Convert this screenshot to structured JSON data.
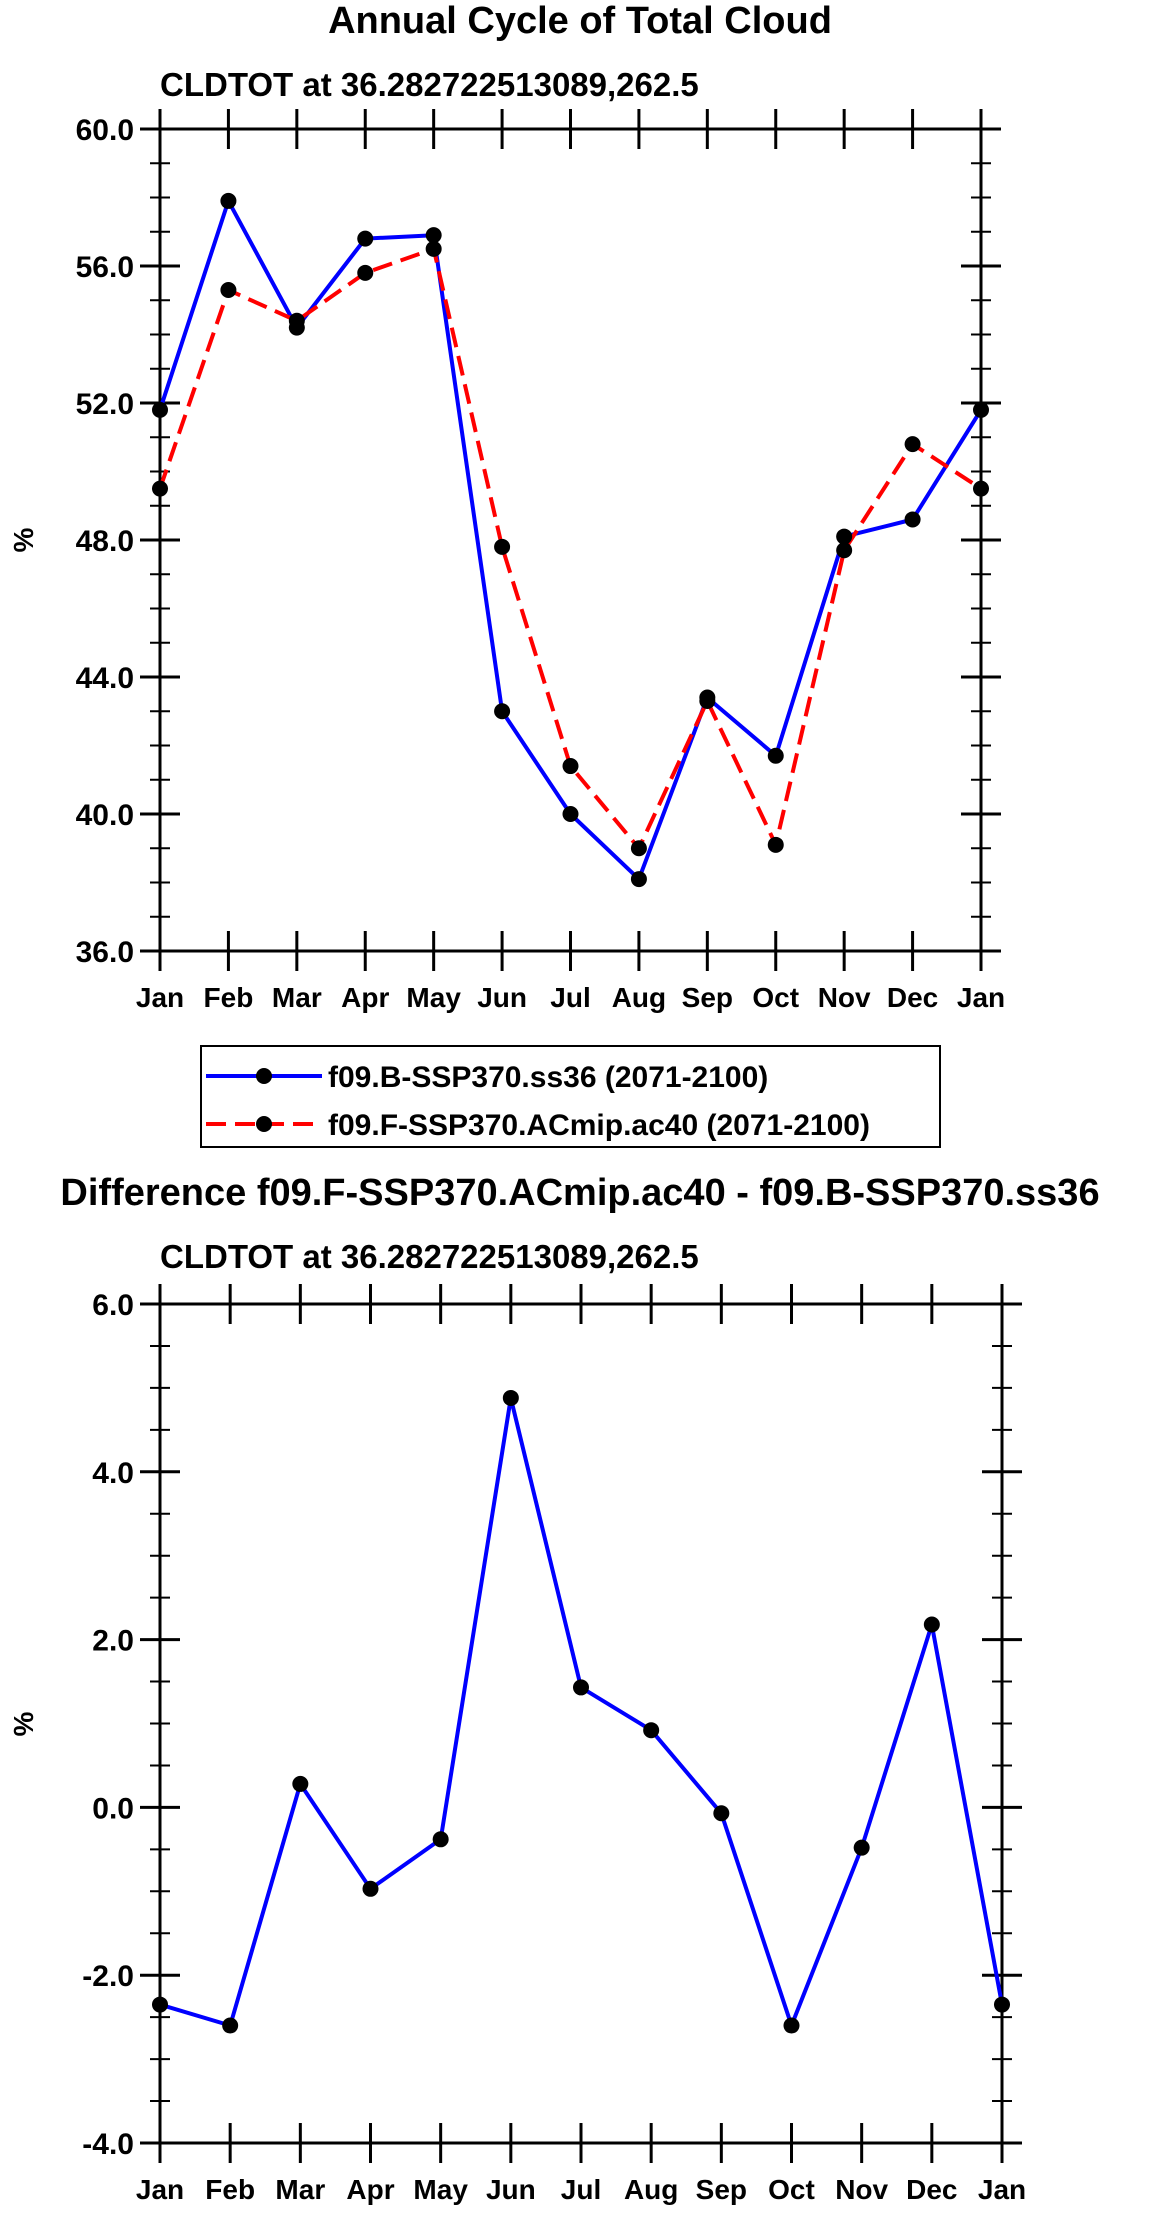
{
  "chart_data": [
    {
      "type": "line",
      "title": "Annual Cycle of Total Cloud",
      "subtitle": "CLDTOT at 36.282722513089,262.5",
      "xlabel": "",
      "ylabel": "%",
      "ylim": [
        36.0,
        60.0
      ],
      "yticks": [
        "36.0",
        "40.0",
        "44.0",
        "48.0",
        "52.0",
        "56.0",
        "60.0"
      ],
      "categories": [
        "Jan",
        "Feb",
        "Mar",
        "Apr",
        "May",
        "Jun",
        "Jul",
        "Aug",
        "Sep",
        "Oct",
        "Nov",
        "Dec",
        "Jan"
      ],
      "legend_position": "bottom",
      "series": [
        {
          "name": "f09.B-SSP370.ss36 (2071-2100)",
          "color": "#0000ff",
          "dash": "solid",
          "values": [
            51.8,
            57.9,
            54.2,
            56.8,
            56.9,
            43.0,
            40.0,
            38.1,
            43.4,
            41.7,
            48.1,
            48.6,
            51.8
          ]
        },
        {
          "name": "f09.F-SSP370.ACmip.ac40 (2071-2100)",
          "color": "#ff0000",
          "dash": "dashed",
          "values": [
            49.5,
            55.3,
            54.4,
            55.8,
            56.5,
            47.8,
            41.4,
            39.0,
            43.3,
            39.1,
            47.7,
            50.8,
            49.5
          ]
        }
      ]
    },
    {
      "type": "line",
      "title": "Difference f09.F-SSP370.ACmip.ac40 - f09.B-SSP370.ss36",
      "subtitle": "CLDTOT at 36.282722513089,262.5",
      "xlabel": "",
      "ylabel": "%",
      "ylim": [
        -4.0,
        6.0
      ],
      "yticks": [
        "-4.0",
        "-2.0",
        "0.0",
        "2.0",
        "4.0",
        "6.0"
      ],
      "categories": [
        "Jan",
        "Feb",
        "Mar",
        "Apr",
        "May",
        "Jun",
        "Jul",
        "Aug",
        "Sep",
        "Oct",
        "Nov",
        "Dec",
        "Jan"
      ],
      "series": [
        {
          "name": "Difference",
          "color": "#0000ff",
          "dash": "solid",
          "values": [
            -2.35,
            -2.6,
            0.28,
            -0.97,
            -0.38,
            4.88,
            1.43,
            0.92,
            -0.07,
            -2.6,
            -0.48,
            2.18,
            -2.35
          ]
        }
      ]
    }
  ]
}
